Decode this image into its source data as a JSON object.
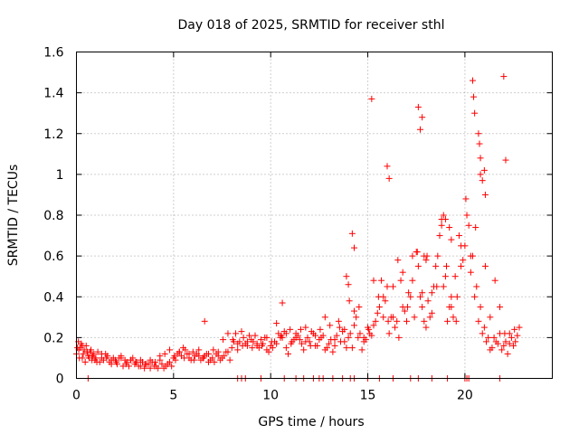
{
  "chart_data": {
    "type": "scatter",
    "title": "Day 018 of 2025, SRMTID for receiver sthl",
    "xlabel": "GPS time / hours",
    "ylabel": "SRMTID / TECUs",
    "xlim": [
      0,
      24.5
    ],
    "ylim": [
      0,
      1.6
    ],
    "xticks": [
      0,
      5,
      10,
      15,
      20
    ],
    "xtick_labels": [
      "0",
      "5",
      "10",
      "15",
      "20"
    ],
    "yticks": [
      0,
      0.2,
      0.4,
      0.6,
      0.8,
      1.0,
      1.2,
      1.4,
      1.6
    ],
    "ytick_labels": [
      "0",
      "0.2",
      "0.4",
      "0.6",
      "0.8",
      "1",
      "1.2",
      "1.4",
      "1.6"
    ],
    "grid": true,
    "marker": "+",
    "marker_color": "#ff0000",
    "series": [
      {
        "name": "SRMTID",
        "x": [
          0.0,
          0.1,
          0.2,
          0.3,
          0.4,
          0.5,
          0.6,
          0.7,
          0.8,
          0.9,
          1.0,
          1.2,
          1.4,
          1.6,
          1.8,
          2.0,
          2.2,
          2.4,
          2.6,
          2.8,
          3.0,
          3.2,
          3.4,
          3.6,
          3.8,
          4.0,
          4.2,
          4.4,
          4.6,
          4.8,
          5.0,
          5.2,
          5.4,
          5.6,
          5.8,
          6.0,
          6.2,
          6.4,
          6.6,
          6.8,
          7.0,
          7.2,
          7.4,
          7.6,
          7.8,
          8.0,
          8.2,
          8.4,
          8.6,
          8.8,
          9.0,
          9.2,
          9.4,
          9.6,
          9.8,
          10.0,
          10.2,
          10.4,
          10.6,
          10.8,
          11.0,
          11.2,
          11.4,
          11.6,
          11.8,
          12.0,
          12.2,
          12.4,
          12.6,
          12.8,
          13.0,
          13.2,
          13.4,
          13.6,
          13.8,
          14.0,
          14.2,
          14.4,
          14.6,
          14.8,
          15.0,
          15.2,
          15.4,
          15.6,
          15.8,
          16.0,
          16.2,
          16.4,
          16.6,
          16.8,
          17.0,
          17.2,
          17.4,
          17.6,
          17.8,
          18.0,
          18.2,
          18.4,
          18.6,
          18.8,
          19.0,
          19.2,
          19.4,
          19.6,
          19.8,
          20.0,
          20.2,
          20.4,
          20.6,
          20.8,
          21.0,
          21.2,
          21.4,
          21.6,
          21.8,
          22.0,
          22.2,
          22.4,
          22.6,
          22.8,
          0.05,
          0.15,
          0.25,
          0.35,
          0.45,
          0.55,
          0.65,
          0.75,
          0.85,
          0.95,
          1.1,
          1.3,
          1.5,
          1.7,
          1.9,
          2.1,
          2.3,
          2.5,
          2.7,
          2.9,
          3.1,
          3.3,
          3.5,
          3.7,
          3.9,
          4.1,
          4.3,
          4.5,
          4.7,
          4.9,
          5.1,
          5.3,
          5.5,
          5.7,
          5.9,
          6.1,
          6.3,
          6.5,
          6.7,
          6.9,
          7.1,
          7.3,
          7.5,
          7.7,
          7.9,
          8.1,
          8.3,
          8.5,
          8.7,
          8.9,
          9.1,
          9.3,
          9.5,
          9.7,
          9.9,
          10.1,
          10.3,
          10.5,
          10.7,
          10.9,
          11.1,
          11.3,
          11.5,
          11.7,
          11.9,
          12.1,
          12.3,
          12.5,
          12.7,
          12.9,
          13.1,
          13.3,
          13.5,
          13.7,
          13.9,
          14.1,
          14.3,
          14.5,
          14.7,
          14.9,
          15.1,
          15.3,
          15.5,
          15.7,
          15.9,
          16.1,
          16.3,
          16.5,
          16.7,
          16.9,
          17.1,
          17.3,
          17.5,
          17.7,
          17.9,
          18.1,
          18.3,
          18.5,
          18.7,
          18.9,
          19.1,
          19.3,
          19.5,
          19.7,
          19.9,
          20.1,
          20.3,
          20.5,
          20.7,
          20.9,
          21.1,
          21.3,
          21.5,
          21.7,
          21.9,
          22.1,
          22.3,
          22.5,
          22.7,
          0.12,
          0.3,
          0.55,
          0.8,
          1.05,
          1.3,
          1.55,
          1.8,
          2.05,
          2.3,
          2.55,
          2.8,
          3.05,
          3.3,
          3.55,
          3.8,
          4.05,
          4.3,
          4.55,
          4.8,
          5.05,
          5.3,
          5.55,
          5.8,
          6.05,
          6.3,
          6.55,
          6.8,
          7.05,
          7.3,
          7.55,
          7.8,
          8.05,
          8.3,
          8.55,
          8.8,
          9.05,
          9.3,
          9.55,
          9.8,
          10.05,
          10.3,
          10.55,
          10.8,
          11.05,
          11.3,
          11.55,
          11.8,
          12.05,
          12.3,
          12.55,
          12.8,
          13.05,
          13.3,
          13.55,
          13.8,
          14.05,
          14.3,
          14.55,
          14.8,
          15.05,
          15.3,
          15.55,
          15.8,
          16.05,
          16.3,
          16.55,
          16.8,
          17.05,
          17.3,
          17.55,
          17.8,
          18.05,
          18.3,
          18.55,
          18.8,
          19.05,
          19.3,
          19.55,
          19.8,
          20.05,
          20.3,
          20.55,
          20.8,
          21.05,
          21.3,
          21.55,
          21.8,
          22.05,
          22.3,
          22.55,
          6.6,
          10.6,
          15.2,
          20.4,
          20.45,
          20.5,
          22.0,
          22.1,
          17.6,
          17.7,
          17.8,
          16.0,
          16.1,
          18.9,
          19.0,
          20.9,
          21.0,
          21.05,
          20.7,
          20.75,
          20.8,
          19.2,
          19.3,
          17.9,
          18.0,
          14.2,
          14.3,
          13.9,
          14.0,
          8.3,
          8.5,
          8.7,
          9.5,
          10.7,
          11.3,
          11.7,
          12.2,
          12.5,
          12.7,
          13.2,
          13.7,
          14.1,
          14.3,
          15.0,
          15.6,
          16.3,
          17.2,
          17.6,
          18.3,
          19.1,
          20.0,
          20.1,
          20.2,
          21.8,
          0.6
        ],
        "y": [
          0.12,
          0.18,
          0.15,
          0.1,
          0.14,
          0.16,
          0.11,
          0.13,
          0.09,
          0.12,
          0.1,
          0.08,
          0.09,
          0.11,
          0.07,
          0.09,
          0.1,
          0.06,
          0.08,
          0.09,
          0.07,
          0.06,
          0.08,
          0.07,
          0.09,
          0.06,
          0.05,
          0.07,
          0.06,
          0.08,
          0.1,
          0.12,
          0.11,
          0.14,
          0.1,
          0.13,
          0.12,
          0.09,
          0.11,
          0.08,
          0.1,
          0.12,
          0.09,
          0.11,
          0.13,
          0.15,
          0.22,
          0.18,
          0.2,
          0.16,
          0.19,
          0.21,
          0.15,
          0.17,
          0.14,
          0.16,
          0.18,
          0.22,
          0.2,
          0.15,
          0.24,
          0.19,
          0.21,
          0.17,
          0.25,
          0.18,
          0.22,
          0.16,
          0.2,
          0.14,
          0.17,
          0.13,
          0.21,
          0.18,
          0.24,
          0.2,
          0.15,
          0.3,
          0.22,
          0.18,
          0.25,
          0.21,
          0.28,
          0.35,
          0.4,
          0.45,
          0.3,
          0.25,
          0.2,
          0.35,
          0.28,
          0.4,
          0.3,
          0.55,
          0.35,
          0.25,
          0.3,
          0.45,
          0.6,
          0.75,
          0.5,
          0.35,
          0.3,
          0.4,
          0.55,
          0.65,
          0.75,
          0.6,
          0.45,
          0.35,
          0.25,
          0.2,
          0.15,
          0.18,
          0.22,
          0.16,
          0.12,
          0.2,
          0.18,
          0.25,
          0.15,
          0.1,
          0.17,
          0.12,
          0.08,
          0.13,
          0.1,
          0.14,
          0.11,
          0.09,
          0.13,
          0.1,
          0.12,
          0.08,
          0.1,
          0.07,
          0.11,
          0.09,
          0.06,
          0.1,
          0.08,
          0.09,
          0.05,
          0.07,
          0.08,
          0.06,
          0.09,
          0.05,
          0.07,
          0.06,
          0.09,
          0.13,
          0.15,
          0.12,
          0.09,
          0.11,
          0.14,
          0.1,
          0.12,
          0.09,
          0.08,
          0.11,
          0.1,
          0.13,
          0.09,
          0.18,
          0.14,
          0.23,
          0.17,
          0.21,
          0.18,
          0.16,
          0.19,
          0.2,
          0.13,
          0.15,
          0.17,
          0.2,
          0.23,
          0.12,
          0.18,
          0.22,
          0.19,
          0.14,
          0.2,
          0.23,
          0.16,
          0.19,
          0.21,
          0.15,
          0.19,
          0.16,
          0.28,
          0.23,
          0.15,
          0.22,
          0.33,
          0.2,
          0.14,
          0.19,
          0.22,
          0.26,
          0.32,
          0.48,
          0.38,
          0.22,
          0.3,
          0.28,
          0.48,
          0.33,
          0.42,
          0.6,
          0.62,
          0.4,
          0.28,
          0.38,
          0.42,
          0.55,
          0.7,
          0.45,
          0.28,
          0.35,
          0.5,
          0.7,
          0.58,
          0.8,
          0.52,
          0.4,
          0.28,
          0.22,
          0.18,
          0.14,
          0.2,
          0.17,
          0.14,
          0.18,
          0.22,
          0.16,
          0.21,
          0.14,
          0.16,
          0.13,
          0.11,
          0.08,
          0.12,
          0.1,
          0.09,
          0.08,
          0.1,
          0.07,
          0.09,
          0.08,
          0.06,
          0.07,
          0.05,
          0.08,
          0.11,
          0.12,
          0.14,
          0.11,
          0.13,
          0.1,
          0.12,
          0.09,
          0.11,
          0.1,
          0.12,
          0.14,
          0.13,
          0.19,
          0.22,
          0.19,
          0.17,
          0.16,
          0.18,
          0.15,
          0.17,
          0.16,
          0.2,
          0.18,
          0.27,
          0.21,
          0.22,
          0.17,
          0.2,
          0.24,
          0.18,
          0.16,
          0.21,
          0.24,
          0.3,
          0.26,
          0.19,
          0.25,
          0.18,
          0.38,
          0.26,
          0.35,
          0.2,
          0.24,
          0.48,
          0.4,
          0.3,
          0.28,
          0.45,
          0.58,
          0.52,
          0.35,
          0.48,
          0.62,
          0.42,
          0.6,
          0.32,
          0.45,
          0.78,
          0.55,
          0.4,
          0.28,
          0.65,
          0.88,
          0.6,
          0.74,
          1.0,
          0.55,
          0.3,
          0.48,
          0.35,
          0.22,
          0.17,
          0.24,
          0.28,
          0.37,
          1.37,
          1.46,
          1.38,
          1.3,
          1.48,
          1.07,
          1.33,
          1.22,
          1.28,
          1.04,
          0.98,
          0.8,
          0.78,
          0.97,
          1.02,
          0.9,
          1.2,
          1.15,
          1.08,
          0.74,
          0.68,
          0.6,
          0.58,
          0.71,
          0.64,
          0.5,
          0.46,
          0.0,
          0.0,
          0.0,
          0.0,
          0.0,
          0.0,
          0.0,
          0.0,
          0.0,
          0.0,
          0.0,
          0.0,
          0.0,
          0.0,
          0.0,
          0.0,
          0.0,
          0.0,
          0.0,
          0.0,
          0.0,
          0.0,
          0.0,
          0.0,
          0.0,
          0.0
        ]
      }
    ]
  }
}
